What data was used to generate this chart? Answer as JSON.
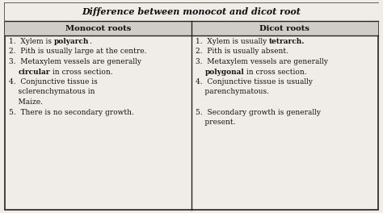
{
  "title": "Difference between monocot and dicot root",
  "col1_header": "Monocot roots",
  "col2_header": "Dicot roots",
  "bg_color": "#f0ede8",
  "header_bg": "#d0cdc8",
  "border_color": "#222222",
  "text_color": "#111111",
  "font_size": 6.5,
  "header_font_size": 7.2,
  "title_font_size": 8.0,
  "col1_lines": [
    [
      [
        "1.  Xylem is ",
        false
      ],
      [
        "polyarch",
        true
      ],
      [
        ".",
        false
      ]
    ],
    [
      [
        "2.  Pith is usually large at the centre.",
        false
      ]
    ],
    [
      [
        "3.  Metaxylem vessels are generally",
        false
      ]
    ],
    [
      [
        "    ",
        false
      ],
      [
        "circular",
        true
      ],
      [
        " in cross section.",
        false
      ]
    ],
    [
      [
        "4.  Conjunctive tissue is",
        false
      ]
    ],
    [
      [
        "    sclerenchymatous in",
        false
      ]
    ],
    [
      [
        "    Maize.",
        false
      ]
    ],
    [
      [
        "5.  There is no secondary growth.",
        false
      ]
    ]
  ],
  "col2_lines": [
    [
      [
        "1.  Xylem is usually ",
        false
      ],
      [
        "tetrarch.",
        true
      ]
    ],
    [
      [
        "2.  Pith is usually absent.",
        false
      ]
    ],
    [
      [
        "3.  Metaxylem vessels are generally",
        false
      ]
    ],
    [
      [
        "    ",
        false
      ],
      [
        "polygonal",
        true
      ],
      [
        " in cross section.",
        false
      ]
    ],
    [
      [
        "4.  Conjunctive tissue is usually",
        false
      ]
    ],
    [
      [
        "    parenchymatous.",
        false
      ]
    ],
    [
      [
        "",
        false
      ]
    ],
    [
      [
        "5.  Secondary growth is generally",
        false
      ]
    ],
    [
      [
        "    present.",
        false
      ]
    ]
  ]
}
